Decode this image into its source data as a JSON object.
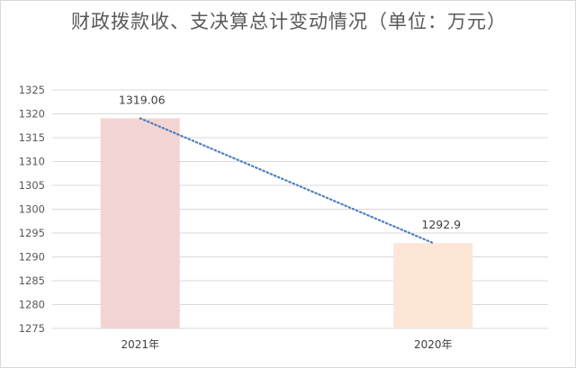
{
  "chart_data": {
    "type": "bar",
    "title": "财政拨款收、支决算总计变动情况（单位：万元）",
    "categories": [
      "2021年",
      "2020年"
    ],
    "series": [
      {
        "values": [
          1319.06,
          1292.9
        ],
        "data_labels": [
          "1319.06",
          "1292.9"
        ],
        "colors": [
          "#f2d5d3",
          "#fde6d6"
        ]
      }
    ],
    "trendline": {
      "type": "linear",
      "style": "dotted",
      "color": "#4f7fbf"
    },
    "ylim": [
      1275,
      1325
    ],
    "yticks": [
      "1275",
      "1280",
      "1285",
      "1290",
      "1295",
      "1300",
      "1305",
      "1310",
      "1315",
      "1320",
      "1325"
    ],
    "grid": true,
    "legend": "none",
    "xlabel": "",
    "ylabel": ""
  }
}
